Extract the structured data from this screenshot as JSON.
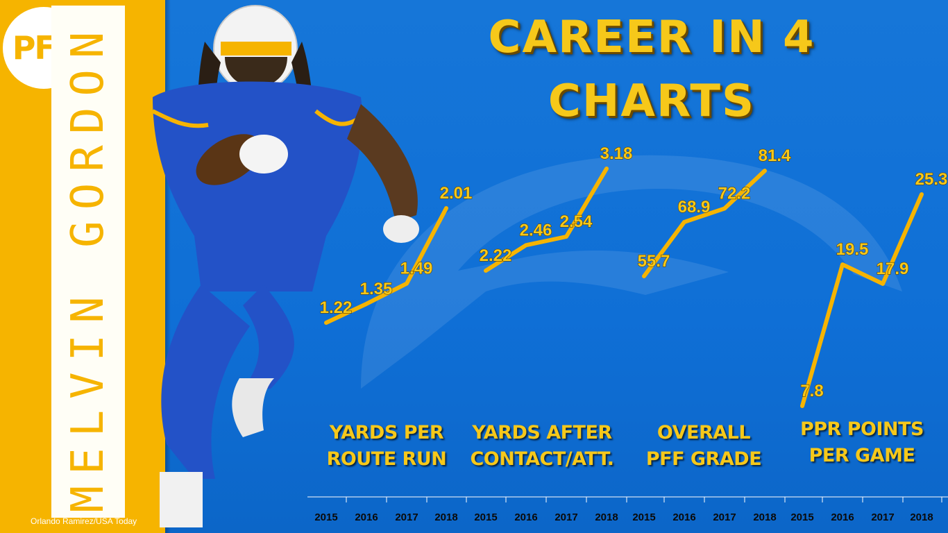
{
  "title": "CAREER IN 4 CHARTS",
  "logo": "PFF",
  "player_name": "MELVIN GORDON",
  "photo_credit": "Orlando Ramirez/USA Today",
  "colors": {
    "background": "#0f6fd6",
    "accent": "#f6b400",
    "line": "#f6b400",
    "label": "#f6c81a"
  },
  "chart_data": [
    {
      "type": "line",
      "label_lines": [
        "YARDS PER",
        "ROUTE RUN"
      ],
      "x": [
        "2015",
        "2016",
        "2017",
        "2018"
      ],
      "values": [
        1.22,
        1.35,
        1.49,
        2.01
      ],
      "value_labels": [
        "1.22",
        "1.35",
        "1.49",
        "2.01"
      ]
    },
    {
      "type": "line",
      "label_lines": [
        "YARDS AFTER",
        "CONTACT/ATT."
      ],
      "x": [
        "2015",
        "2016",
        "2017",
        "2018"
      ],
      "values": [
        2.22,
        2.46,
        2.54,
        3.18
      ],
      "value_labels": [
        "2.22",
        "2.46",
        "2.54",
        "3.18"
      ]
    },
    {
      "type": "line",
      "label_lines": [
        "OVERALL",
        "PFF GRADE"
      ],
      "x": [
        "2015",
        "2016",
        "2017",
        "2018"
      ],
      "values": [
        55.7,
        68.9,
        72.2,
        81.4
      ],
      "value_labels": [
        "55.7",
        "68.9",
        "72.2",
        "81.4"
      ]
    },
    {
      "type": "line",
      "label_lines": [
        "PPR POINTS",
        "PER GAME"
      ],
      "x": [
        "2015",
        "2016",
        "2017",
        "2018"
      ],
      "values": [
        7.8,
        19.5,
        17.9,
        25.3
      ],
      "value_labels": [
        "7.8",
        "19.5",
        "17.9",
        "25.3"
      ]
    }
  ]
}
